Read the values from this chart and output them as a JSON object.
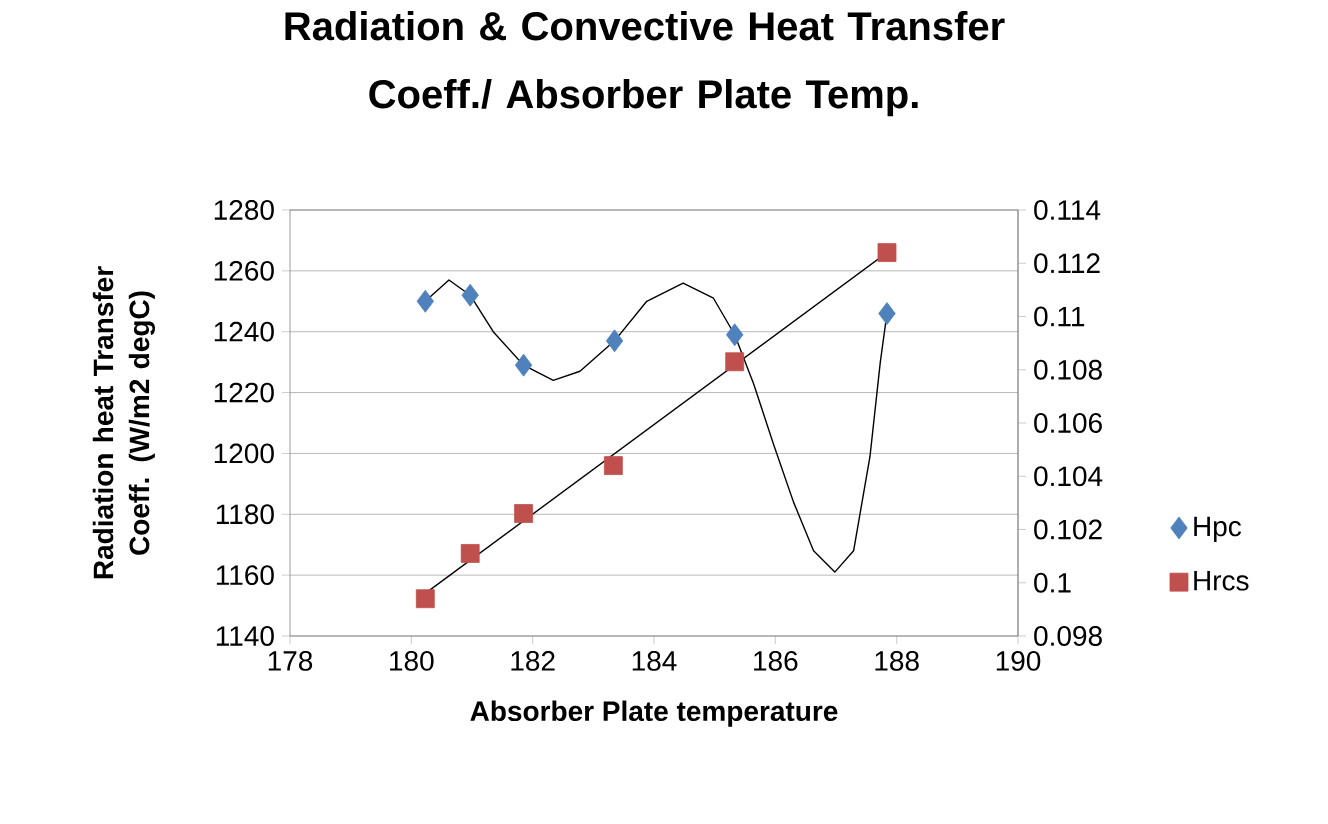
{
  "chart_data": {
    "type": "scatter",
    "title": "Radiation  & Convective Heat Transfer Coeff./ Absorber Plate Temp.",
    "xlabel": "Absorber Plate temperature",
    "ylabel": "Radiation heat Transfer Coeff. (W/m2 degC)",
    "xlim": [
      178,
      190
    ],
    "xticks": [
      178,
      180,
      182,
      184,
      186,
      188,
      190
    ],
    "ylim": [
      1140,
      1280
    ],
    "yticks": [
      1140,
      1160,
      1180,
      1200,
      1220,
      1240,
      1260,
      1280
    ],
    "y2lim": [
      0.098,
      0.114
    ],
    "y2ticks": [
      0.098,
      0.1,
      0.102,
      0.104,
      0.106,
      0.108,
      0.11,
      0.112,
      0.114
    ],
    "grid": "y",
    "legend": "right",
    "series": [
      {
        "name": "Hpc",
        "marker": "diamond",
        "color": "#4f81bd",
        "x": [
          180.23,
          180.97,
          181.85,
          183.35,
          185.33,
          187.84
        ],
        "values": [
          1250,
          1252,
          1229,
          1237,
          1239,
          1246
        ]
      },
      {
        "name": "Hrcs",
        "marker": "square",
        "axis": "y2",
        "color": "#c0504d",
        "x": [
          180.23,
          180.97,
          181.85,
          183.33,
          185.33,
          187.84
        ],
        "values": [
          0.0994,
          0.1011,
          0.1026,
          0.1044,
          0.1083,
          0.1124
        ]
      },
      {
        "type": "line",
        "color": "#000000",
        "x": [
          180.23,
          180.62,
          180.97,
          181.35,
          181.85,
          182.34,
          182.78,
          183.35,
          183.88,
          184.48,
          184.98,
          185.33,
          185.64,
          185.97,
          186.3,
          186.63,
          186.98,
          187.29,
          187.56,
          187.73,
          187.84
        ],
        "values": [
          1250,
          1257,
          1252,
          1240,
          1229,
          1224,
          1227,
          1237,
          1250,
          1256,
          1251,
          1239,
          1223,
          1203,
          1184,
          1168,
          1161,
          1168,
          1199,
          1230,
          1246
        ]
      },
      {
        "type": "line",
        "axis": "y2",
        "color": "#000000",
        "x": [
          180.23,
          187.84
        ],
        "values": [
          0.0996,
          0.1124
        ]
      }
    ]
  }
}
